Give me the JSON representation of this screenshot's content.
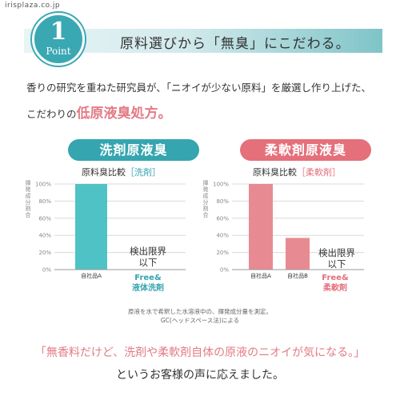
{
  "site_url": "irisplaza.co.jp",
  "point": {
    "number": "1",
    "word": "Point",
    "title": "原料選びから「無臭」にこだわる。"
  },
  "intro": {
    "line1": "香りの研究を重ねた研究員が、「ニオイが少ない原料」を厳選し作り上げた、",
    "line2_prefix": "こだわりの",
    "line2_highlight": "低原液臭処方。"
  },
  "colors": {
    "teal": "#35a5af",
    "pink": "#e5707c",
    "bar_teal": "#4fc2c5",
    "bar_pink": "#e88a92"
  },
  "chart_data": [
    {
      "type": "bar",
      "title": "洗剤原液臭",
      "subtitle_prefix": "原料臭比較",
      "subtitle_accent": "［洗剤］",
      "ylabel": "揮発成分割合",
      "ylim": [
        0,
        100
      ],
      "yticks": [
        "100%",
        "80%",
        "60%",
        "40%",
        "20%",
        "0%"
      ],
      "categories": [
        "自社品A",
        "Free& 液体洗剤"
      ],
      "category_line1": "Free&",
      "category_line2": "液体洗剤",
      "values": [
        100,
        0
      ],
      "limit_note_1": "検出限界",
      "limit_note_2": "以下"
    },
    {
      "type": "bar",
      "title": "柔軟剤原液臭",
      "subtitle_prefix": "原料臭比較",
      "subtitle_accent": "［柔軟剤］",
      "ylabel": "揮発成分割合",
      "ylim": [
        0,
        100
      ],
      "yticks": [
        "100%",
        "80%",
        "60%",
        "40%",
        "20%",
        "0%"
      ],
      "categories": [
        "自社品A",
        "自社品B",
        "Free& 柔軟剤"
      ],
      "category_line1": "Free&",
      "category_line2": "柔軟剤",
      "values": [
        100,
        37,
        0
      ],
      "limit_note_1": "検出限界",
      "limit_note_2": "以下"
    }
  ],
  "notes": {
    "line1": "原液を水で希釈した水溶液中の、揮発成分量を測定。",
    "line2": "GC(ヘッドスペース法)による"
  },
  "footer": {
    "quote": "「無香料だけど、洗剤や柔軟剤自体の原液のニオイが気になる。」",
    "closing": "というお客様の声に応えました。"
  }
}
